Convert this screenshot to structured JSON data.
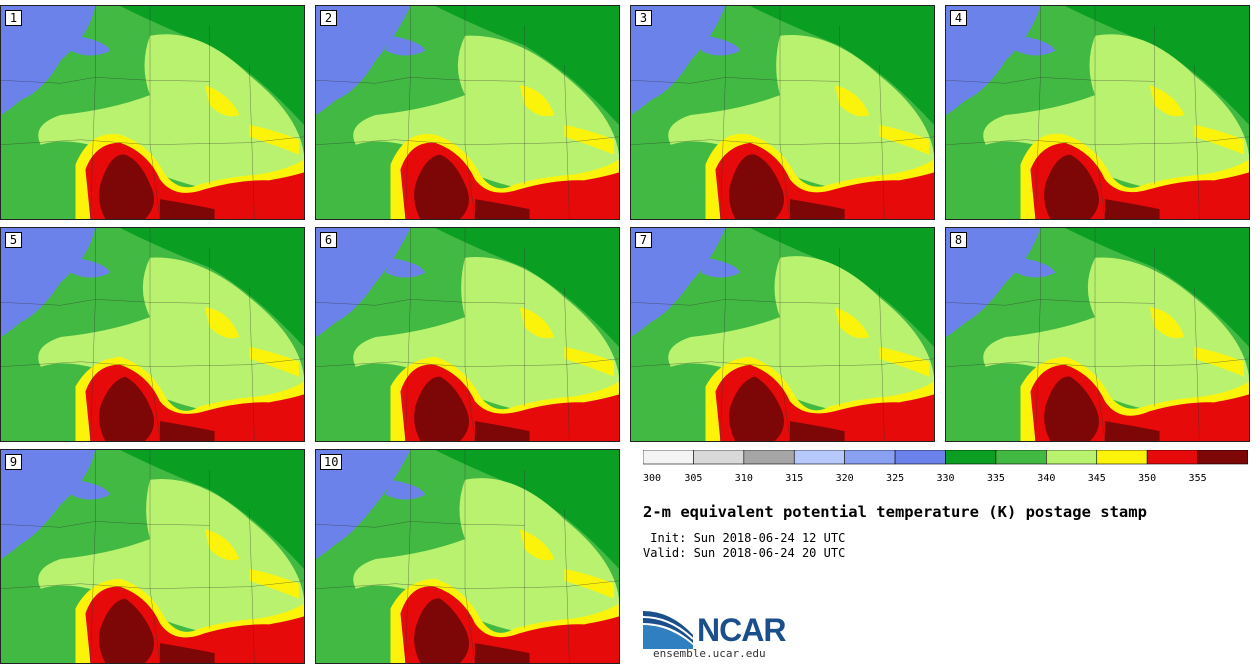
{
  "chart_data": {
    "type": "heatmap",
    "title": "2-m equivalent potential temperature (K) postage stamp",
    "init_label": " Init: Sun 2018-06-24 12 UTC",
    "valid_label": "Valid: Sun 2018-06-24 20 UTC",
    "members": [
      "1",
      "2",
      "3",
      "4",
      "5",
      "6",
      "7",
      "8",
      "9",
      "10"
    ],
    "colorbar": {
      "ticks": [
        300,
        305,
        310,
        315,
        320,
        325,
        330,
        335,
        340,
        345,
        350,
        355
      ],
      "bins": [
        {
          "min": 300,
          "max": 305,
          "color": "#f4f4f4"
        },
        {
          "min": 305,
          "max": 310,
          "color": "#d9d9d9"
        },
        {
          "min": 310,
          "max": 315,
          "color": "#a6a6a6"
        },
        {
          "min": 315,
          "max": 320,
          "color": "#b7c8fb"
        },
        {
          "min": 320,
          "max": 325,
          "color": "#8aa1f2"
        },
        {
          "min": 325,
          "max": 330,
          "color": "#6a82ea"
        },
        {
          "min": 330,
          "max": 335,
          "color": "#0a9e22"
        },
        {
          "min": 335,
          "max": 340,
          "color": "#42b942"
        },
        {
          "min": 340,
          "max": 345,
          "color": "#b9f26f"
        },
        {
          "min": 345,
          "max": 350,
          "color": "#fbf40a"
        },
        {
          "min": 350,
          "max": 355,
          "color": "#e60a0a"
        },
        {
          "min": 355,
          "max": 360,
          "color": "#7d0707"
        }
      ]
    }
  },
  "logo": {
    "name": "NCAR",
    "url": "ensemble.ucar.edu"
  }
}
